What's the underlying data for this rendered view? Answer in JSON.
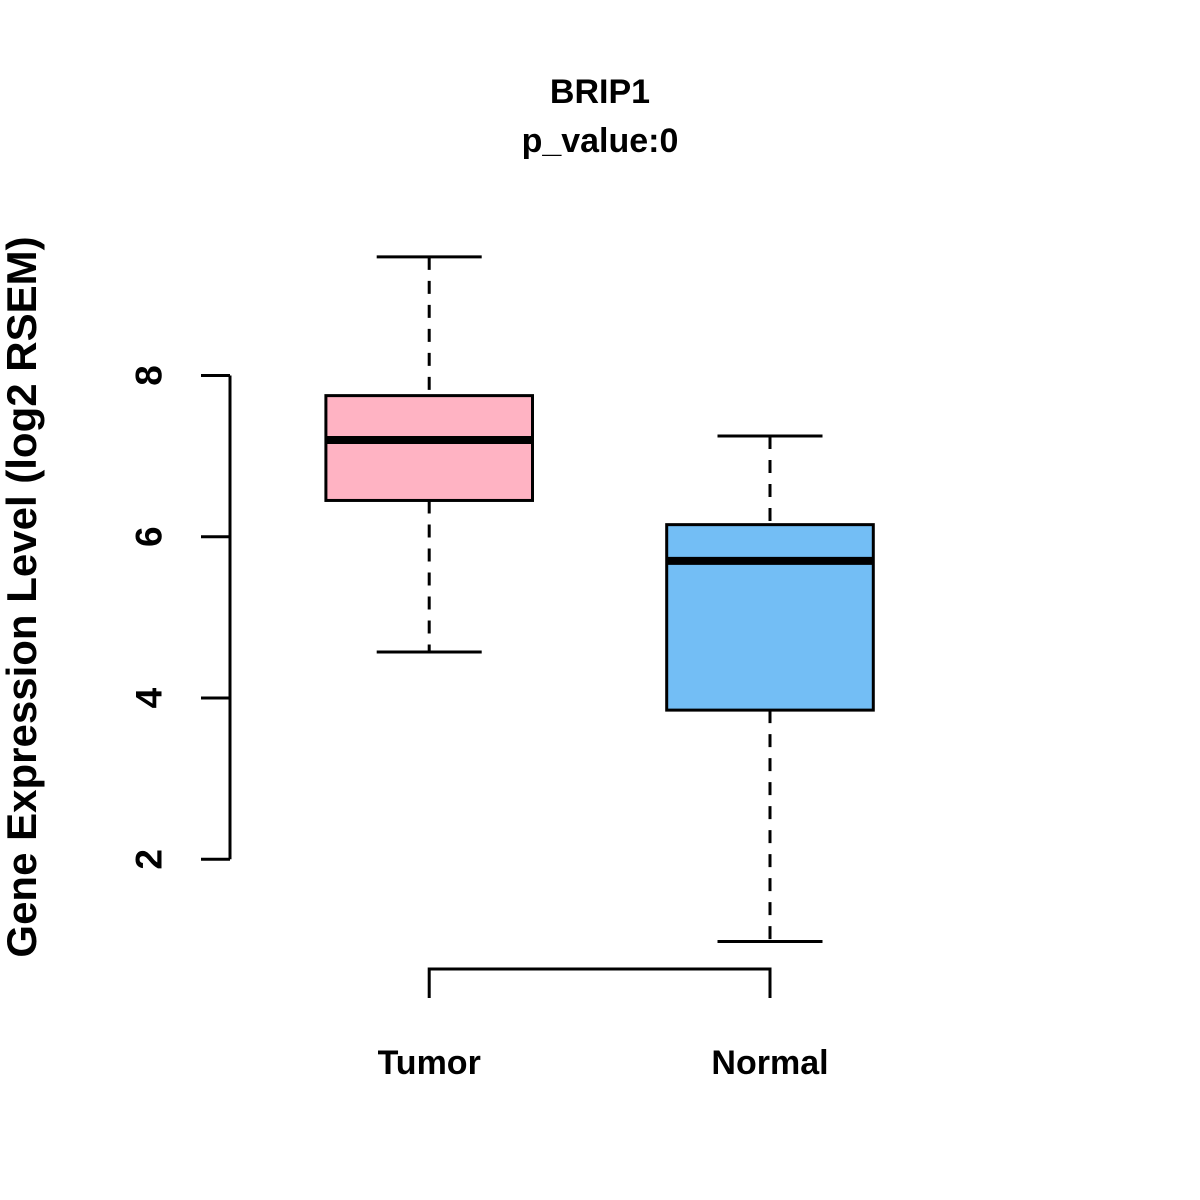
{
  "page": {
    "background": "#ffffff"
  },
  "chart_data": {
    "type": "boxplot",
    "title": "BRIP1",
    "subtitle": "p_value:0",
    "ylabel": "Gene Expression Level (log2 RSEM)",
    "xlabel": "",
    "categories": [
      "Tumor",
      "Normal"
    ],
    "yticks": [
      2,
      4,
      6,
      8
    ],
    "ylim": [
      0.6,
      9.7
    ],
    "grid": false,
    "legend": "none",
    "axis_color": "#000000",
    "text_color": "#000000",
    "whisker_style": "dashed",
    "series": [
      {
        "name": "Tumor",
        "color": "#FFB3C3",
        "whisker_low": 4.57,
        "q1": 6.45,
        "median": 7.2,
        "q3": 7.75,
        "whisker_high": 9.47
      },
      {
        "name": "Normal",
        "color": "#73BEF5",
        "whisker_low": 0.98,
        "q1": 3.85,
        "median": 5.7,
        "q3": 6.15,
        "whisker_high": 7.25
      }
    ],
    "significance_bracket": {
      "from": "Tumor",
      "to": "Normal",
      "orientation": "legs-down"
    }
  }
}
